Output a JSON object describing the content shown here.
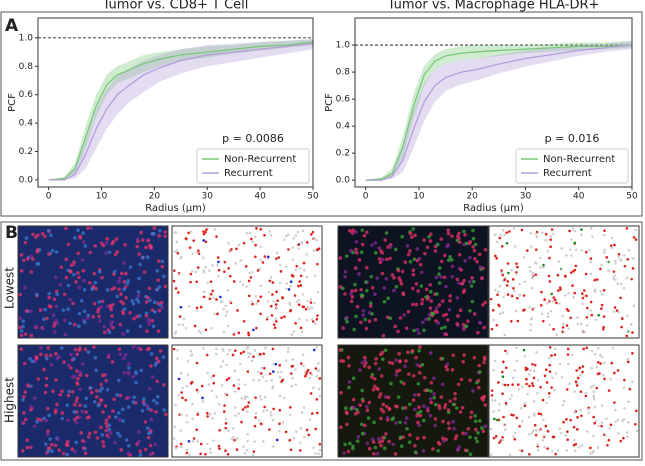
{
  "panels": {
    "a": "A",
    "b": "B"
  },
  "row_labels": [
    "Lowest",
    "Highest"
  ],
  "chart_data": [
    {
      "type": "line",
      "title": "Tumor vs. CD8+ T Cell",
      "x_label": "Radius (μm)",
      "y_label": "PCF",
      "annotation": "p = 0.0086",
      "reference_line": 1.0,
      "legend": "lower right",
      "x": [
        0,
        3,
        5,
        7,
        9,
        11,
        13,
        15,
        18,
        21,
        25,
        30,
        35,
        40,
        45,
        50
      ],
      "series": [
        {
          "name": "Non-Recurrent",
          "color": "#77c877",
          "values": [
            0,
            0.01,
            0.08,
            0.3,
            0.52,
            0.67,
            0.74,
            0.77,
            0.82,
            0.85,
            0.88,
            0.9,
            0.92,
            0.94,
            0.95,
            0.97
          ],
          "lower": [
            0,
            0,
            0.04,
            0.22,
            0.44,
            0.6,
            0.68,
            0.71,
            0.76,
            0.8,
            0.84,
            0.86,
            0.89,
            0.91,
            0.93,
            0.95
          ],
          "upper": [
            0,
            0.02,
            0.12,
            0.38,
            0.6,
            0.74,
            0.8,
            0.83,
            0.88,
            0.9,
            0.92,
            0.94,
            0.95,
            0.97,
            0.98,
            0.99
          ]
        },
        {
          "name": "Recurrent",
          "color": "#b39ddb",
          "values": [
            0,
            0,
            0.04,
            0.18,
            0.36,
            0.5,
            0.6,
            0.66,
            0.74,
            0.79,
            0.84,
            0.88,
            0.9,
            0.92,
            0.94,
            0.96
          ],
          "lower": [
            0,
            0,
            0.01,
            0.08,
            0.22,
            0.36,
            0.46,
            0.54,
            0.62,
            0.69,
            0.75,
            0.8,
            0.83,
            0.86,
            0.89,
            0.92
          ],
          "upper": [
            0,
            0.01,
            0.08,
            0.28,
            0.5,
            0.64,
            0.73,
            0.78,
            0.84,
            0.88,
            0.92,
            0.95,
            0.96,
            0.97,
            0.98,
            0.99
          ]
        }
      ],
      "xlim": [
        -2,
        50
      ],
      "ylim": [
        -0.05,
        1.14
      ],
      "xticks": [
        0,
        10,
        20,
        30,
        40,
        50
      ],
      "yticks": [
        {
          "value": 0,
          "label": "0.0"
        },
        0.2,
        0.4,
        0.6,
        0.8,
        {
          "value": 1,
          "label": "1.0"
        }
      ]
    },
    {
      "type": "line",
      "title": "Tumor vs. Macrophage HLA-DR+",
      "x_label": "Radius (μm)",
      "y_label": "PCF",
      "annotation": "p = 0.016",
      "reference_line": 1.0,
      "legend": "lower right",
      "x": [
        0,
        3,
        5,
        7,
        9,
        11,
        13,
        15,
        18,
        21,
        25,
        30,
        35,
        40,
        45,
        50
      ],
      "series": [
        {
          "name": "Non-Recurrent",
          "color": "#77c877",
          "values": [
            0,
            0.01,
            0.05,
            0.25,
            0.55,
            0.78,
            0.88,
            0.92,
            0.94,
            0.95,
            0.96,
            0.97,
            0.98,
            0.99,
            0.99,
            1.0
          ],
          "lower": [
            0,
            0,
            0.02,
            0.17,
            0.46,
            0.7,
            0.82,
            0.86,
            0.89,
            0.9,
            0.92,
            0.94,
            0.95,
            0.96,
            0.97,
            0.98
          ],
          "upper": [
            0,
            0.02,
            0.09,
            0.33,
            0.64,
            0.85,
            0.93,
            0.97,
            0.99,
            1.0,
            1.0,
            1.0,
            1.01,
            1.02,
            1.02,
            1.03
          ]
        },
        {
          "name": "Recurrent",
          "color": "#b39ddb",
          "values": [
            0,
            0,
            0.03,
            0.15,
            0.38,
            0.58,
            0.7,
            0.76,
            0.8,
            0.82,
            0.86,
            0.9,
            0.93,
            0.96,
            0.98,
            1.0
          ],
          "lower": [
            0,
            0,
            0.01,
            0.06,
            0.24,
            0.44,
            0.58,
            0.66,
            0.71,
            0.74,
            0.79,
            0.84,
            0.88,
            0.92,
            0.95,
            0.97
          ],
          "upper": [
            0,
            0.01,
            0.06,
            0.26,
            0.52,
            0.72,
            0.82,
            0.86,
            0.89,
            0.9,
            0.93,
            0.96,
            0.98,
            1.0,
            1.01,
            1.03
          ]
        }
      ],
      "xlim": [
        -2,
        50
      ],
      "ylim": [
        -0.05,
        1.2
      ],
      "xticks": [
        0,
        10,
        20,
        30,
        40,
        50
      ],
      "yticks": [
        {
          "value": 0,
          "label": "0.0"
        },
        0.2,
        0.4,
        0.6,
        0.8,
        {
          "value": 1,
          "label": "1.0"
        }
      ]
    }
  ]
}
